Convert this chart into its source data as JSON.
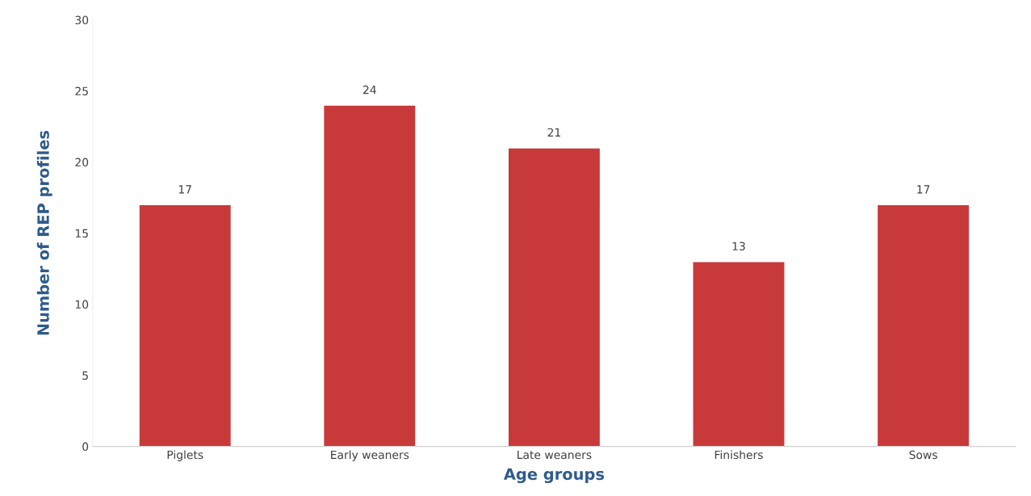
{
  "chart_data": {
    "type": "bar",
    "xlabel": "Age groups",
    "ylabel": "Number of REP profiles",
    "categories": [
      "Piglets",
      "Early weaners",
      "Late weaners",
      "Finishers",
      "Sows"
    ],
    "values": [
      17,
      24,
      21,
      13,
      17
    ],
    "color": "#c83a3a",
    "ylim": [
      0,
      30
    ],
    "yticks": [
      0,
      5,
      10,
      15,
      20,
      25,
      30
    ],
    "grid": false,
    "data_labels": true
  }
}
